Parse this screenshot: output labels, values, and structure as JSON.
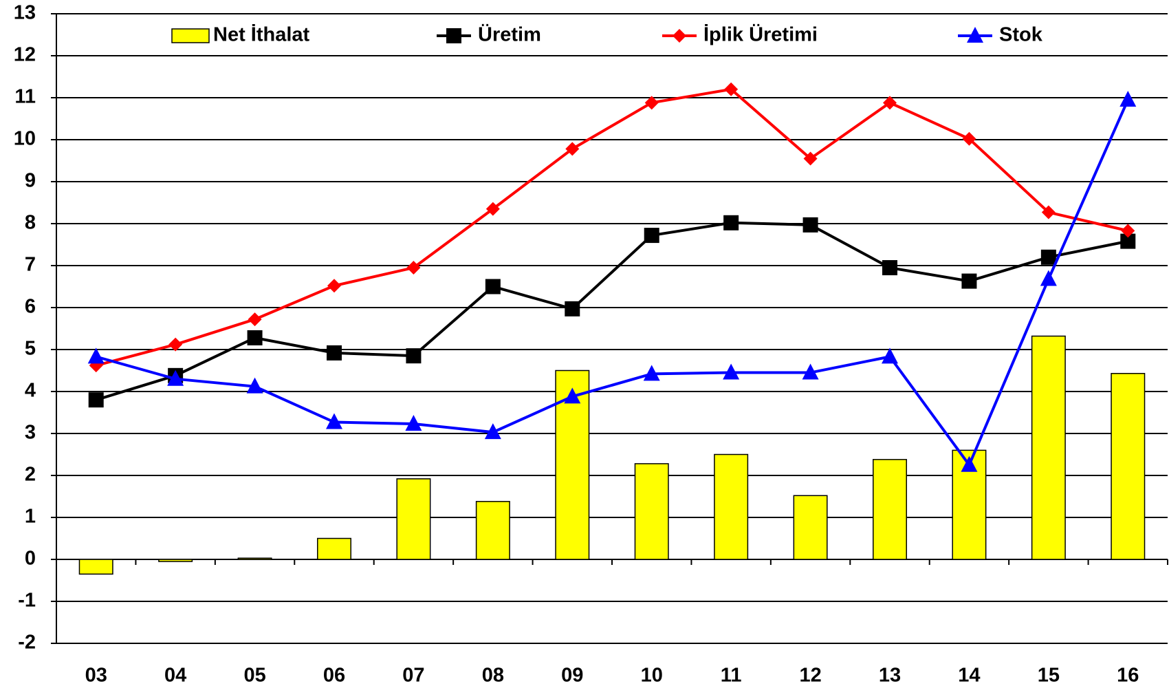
{
  "chart_data": {
    "type": "bar_line",
    "categories": [
      "03",
      "04",
      "05",
      "06",
      "07",
      "08",
      "09",
      "10",
      "11",
      "12",
      "13",
      "14",
      "15",
      "16"
    ],
    "series": [
      {
        "name": "Net İthalat",
        "type": "bar",
        "color": "#ffff00",
        "values": [
          -0.35,
          -0.05,
          0.03,
          0.5,
          1.92,
          1.38,
          4.5,
          2.28,
          2.5,
          1.52,
          2.38,
          2.6,
          5.32,
          4.43
        ]
      },
      {
        "name": "Üretim",
        "type": "line",
        "marker": "square",
        "color": "#000000",
        "values": [
          3.8,
          4.38,
          5.28,
          4.92,
          4.85,
          6.5,
          5.97,
          7.72,
          8.02,
          7.97,
          6.95,
          6.63,
          7.2,
          7.58
        ]
      },
      {
        "name": "İplik Üretimi",
        "type": "line",
        "marker": "diamond",
        "color": "#ff0000",
        "values": [
          4.62,
          5.12,
          5.72,
          6.52,
          6.95,
          8.35,
          9.78,
          10.88,
          11.2,
          9.55,
          10.88,
          10.02,
          8.27,
          7.83
        ]
      },
      {
        "name": "Stok",
        "type": "line",
        "marker": "triangle",
        "color": "#0000ff",
        "values": [
          4.83,
          4.3,
          4.12,
          3.27,
          3.23,
          3.03,
          3.88,
          4.42,
          4.45,
          4.45,
          4.83,
          2.25,
          6.68,
          10.95
        ]
      }
    ],
    "ylim": [
      -2,
      13
    ],
    "yticks": [
      -2,
      -1,
      0,
      1,
      2,
      3,
      4,
      5,
      6,
      7,
      8,
      9,
      10,
      11,
      12,
      13
    ],
    "grid": true,
    "legend": "top"
  }
}
